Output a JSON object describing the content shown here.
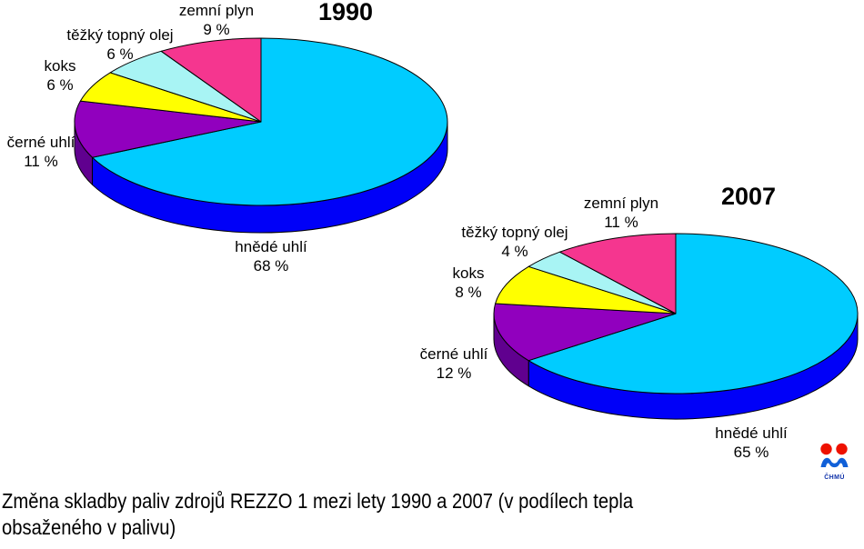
{
  "caption": {
    "line1": "Změna skladby paliv zdrojů REZZO 1 mezi lety 1990 a 2007 (v podílech tepla",
    "line2": "obsaženého v palivu)"
  },
  "logo": {
    "text": "ČHMÚ",
    "red": "#EE1100",
    "blue": "#1160D8"
  },
  "chart_data": [
    {
      "type": "pie",
      "title": "1990",
      "unit": "%",
      "slices": [
        {
          "label": "hnědé uhlí",
          "value": 68,
          "pct_label": "68 %",
          "color": "#00CCFF",
          "side_color": "#0000F8"
        },
        {
          "label": "černé uhlí",
          "value": 11,
          "pct_label": "11 %",
          "color": "#9100BE",
          "side_color": "#60008F"
        },
        {
          "label": "koks",
          "value": 6,
          "pct_label": "6 %",
          "color": "#FFFF00"
        },
        {
          "label": "těžký topný olej",
          "value": 6,
          "pct_label": "6 %",
          "color": "#A8F4F4"
        },
        {
          "label": "zemní plyn",
          "value": 9,
          "pct_label": "9 %",
          "color": "#F5368F"
        }
      ]
    },
    {
      "type": "pie",
      "title": "2007",
      "unit": "%",
      "slices": [
        {
          "label": "hnědé uhlí",
          "value": 65,
          "pct_label": "65 %",
          "color": "#00CCFF",
          "side_color": "#0000F8"
        },
        {
          "label": "černé uhlí",
          "value": 12,
          "pct_label": "12 %",
          "color": "#9100BE",
          "side_color": "#60008F"
        },
        {
          "label": "koks",
          "value": 8,
          "pct_label": "8 %",
          "color": "#FFFF00"
        },
        {
          "label": "těžký topný olej",
          "value": 4,
          "pct_label": "4 %",
          "color": "#A8F4F4"
        },
        {
          "label": "zemní plyn",
          "value": 11,
          "pct_label": "11 %",
          "color": "#F5368F"
        }
      ]
    }
  ]
}
